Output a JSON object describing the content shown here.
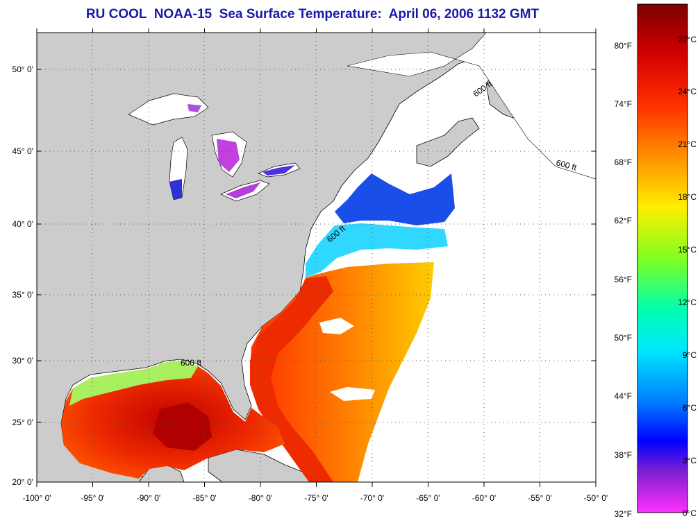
{
  "title": "RU COOL  NOAA-15  Sea Surface Temperature:  April 06, 2006 1132 GMT",
  "map": {
    "lon_range": [
      -100,
      -50
    ],
    "lat_range": [
      20,
      52
    ],
    "lon_ticks": [
      "-100° 0'",
      "-95° 0'",
      "-90° 0'",
      "-85° 0'",
      "-80° 0'",
      "-75° 0'",
      "-70° 0'",
      "-65° 0'",
      "-60° 0'",
      "-55° 0'",
      "-50° 0'"
    ],
    "lat_ticks": [
      "50° 0'",
      "45° 0'",
      "40° 0'",
      "35° 0'",
      "30° 0'",
      "25° 0'",
      "20° 0'"
    ],
    "gridlines": "dotted",
    "contour_label": "600 ft",
    "colors": {
      "land": "#cccccc",
      "no_data": "#ffffff",
      "coast": "#000000"
    }
  },
  "colorbar": {
    "fahrenheit_labels": [
      "80°F",
      "74°F",
      "68°F",
      "62°F",
      "56°F",
      "50°F",
      "44°F",
      "38°F",
      "32°F"
    ],
    "celsius_labels": [
      "27°C",
      "24°C",
      "21°C",
      "18°C",
      "15°C",
      "12°C",
      "9°C",
      "6°C",
      "3°C",
      "0°C"
    ],
    "range_c": [
      0,
      29
    ],
    "gradient": [
      "#8b0000",
      "#ff2000",
      "#ff8000",
      "#ffff00",
      "#80ff00",
      "#00ff80",
      "#00ffff",
      "#0080ff",
      "#0000ff",
      "#8000c0",
      "#ff40ff"
    ]
  }
}
